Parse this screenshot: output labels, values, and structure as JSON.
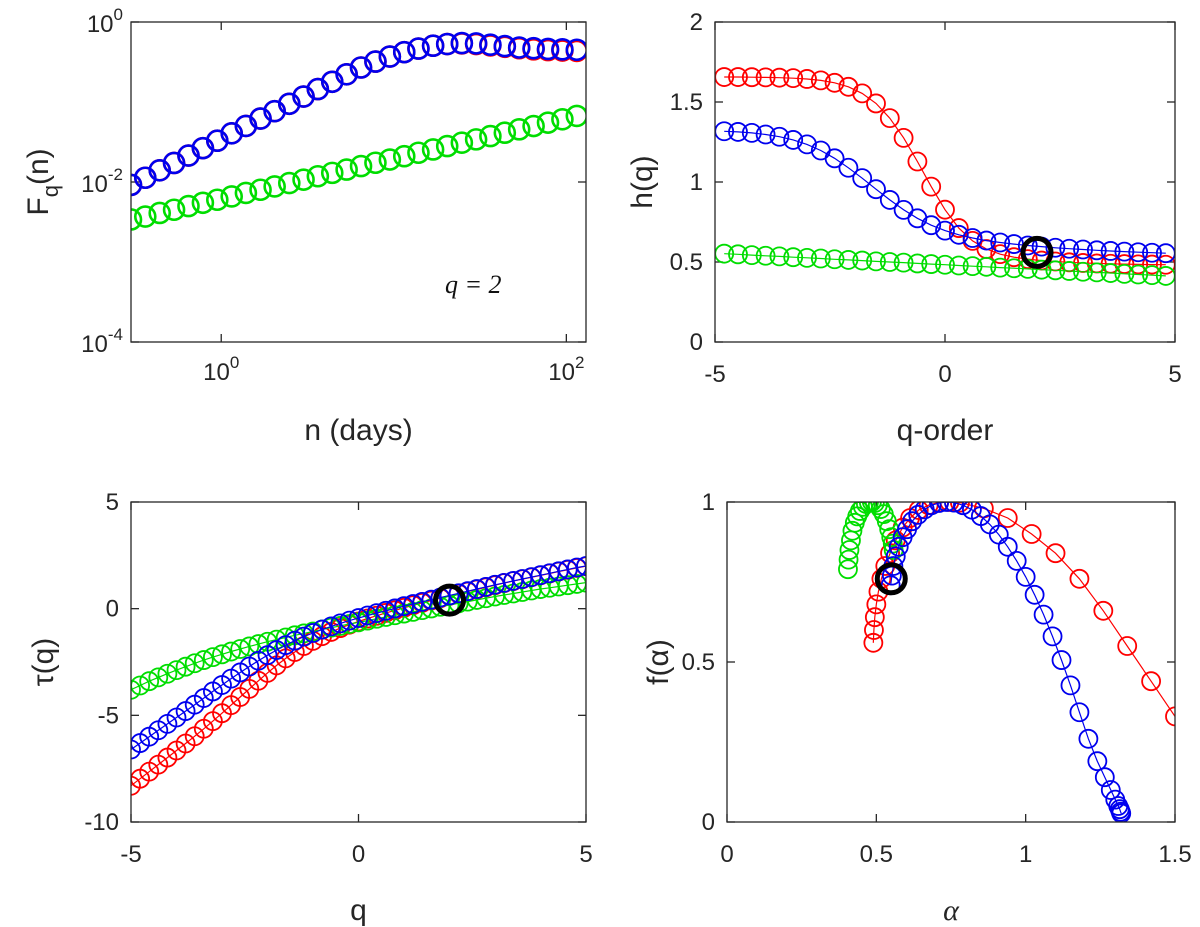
{
  "colors": {
    "red": "#ff0000",
    "green": "#00dd00",
    "blue": "#0000ee",
    "black": "#000000"
  },
  "chart_data": [
    {
      "type": "scatter",
      "panel": "top-left",
      "xscale": "log",
      "yscale": "log",
      "xlim": [
        0.3,
        130
      ],
      "ylim": [
        0.0001,
        1
      ],
      "xticks": [
        1,
        100
      ],
      "xtick_labels": [
        {
          "base": "10",
          "exp": "0"
        },
        {
          "base": "10",
          "exp": "2"
        }
      ],
      "yticks": [
        0.0001,
        0.01,
        1
      ],
      "ytick_labels": [
        {
          "base": "10",
          "exp": "-4"
        },
        {
          "base": "10",
          "exp": "-2"
        },
        {
          "base": "10",
          "exp": "0"
        }
      ],
      "xlabel": "n (days)",
      "ylabel": {
        "main": "F",
        "sub": "q",
        "tail": "(n)"
      },
      "annotation": "q = 2",
      "series": [
        {
          "color": "red",
          "line": false,
          "x": [
            0.3,
            0.363,
            0.44,
            0.533,
            0.646,
            0.783,
            0.949,
            1.15,
            1.39,
            1.69,
            2.04,
            2.48,
            3.0,
            3.63,
            4.4,
            5.33,
            6.46,
            7.83,
            9.49,
            11.5,
            13.9,
            16.9,
            20.4,
            24.8,
            30.0,
            36.3,
            44.0,
            53.3,
            64.6,
            78.3,
            94.9,
            115
          ],
          "y": [
            0.0092,
            0.0113,
            0.014,
            0.0173,
            0.0214,
            0.0265,
            0.0328,
            0.0406,
            0.0502,
            0.0621,
            0.0768,
            0.095,
            0.117,
            0.145,
            0.179,
            0.222,
            0.27,
            0.32,
            0.37,
            0.42,
            0.465,
            0.505,
            0.53,
            0.54,
            0.53,
            0.51,
            0.49,
            0.47,
            0.455,
            0.445,
            0.44,
            0.435
          ]
        },
        {
          "color": "green",
          "line": false,
          "x": [
            0.3,
            0.363,
            0.44,
            0.533,
            0.646,
            0.783,
            0.949,
            1.15,
            1.39,
            1.69,
            2.04,
            2.48,
            3.0,
            3.63,
            4.4,
            5.33,
            6.46,
            7.83,
            9.49,
            11.5,
            13.9,
            16.9,
            20.4,
            24.8,
            30.0,
            36.3,
            44.0,
            53.3,
            64.6,
            78.3,
            94.9,
            115
          ],
          "y": [
            0.0034,
            0.0037,
            0.0041,
            0.0045,
            0.005,
            0.0055,
            0.006,
            0.0066,
            0.0073,
            0.008,
            0.0088,
            0.0097,
            0.0107,
            0.0118,
            0.013,
            0.0143,
            0.0158,
            0.0174,
            0.0191,
            0.021,
            0.0232,
            0.0255,
            0.0281,
            0.031,
            0.0341,
            0.0375,
            0.0413,
            0.0455,
            0.0501,
            0.0552,
            0.0608,
            0.067
          ]
        },
        {
          "color": "blue",
          "line": false,
          "x": [
            0.3,
            0.363,
            0.44,
            0.533,
            0.646,
            0.783,
            0.949,
            1.15,
            1.39,
            1.69,
            2.04,
            2.48,
            3.0,
            3.63,
            4.4,
            5.33,
            6.46,
            7.83,
            9.49,
            11.5,
            13.9,
            16.9,
            20.4,
            24.8,
            30.0,
            36.3,
            44.0,
            53.3,
            64.6,
            78.3,
            94.9,
            115
          ],
          "y": [
            0.0092,
            0.0113,
            0.014,
            0.0173,
            0.0214,
            0.0265,
            0.0328,
            0.0406,
            0.0502,
            0.0621,
            0.0768,
            0.095,
            0.117,
            0.145,
            0.179,
            0.222,
            0.27,
            0.32,
            0.37,
            0.42,
            0.465,
            0.505,
            0.53,
            0.545,
            0.54,
            0.52,
            0.5,
            0.48,
            0.47,
            0.46,
            0.455,
            0.45
          ]
        }
      ]
    },
    {
      "type": "scatter",
      "panel": "top-right",
      "xlim": [
        -5,
        5
      ],
      "ylim": [
        0,
        2
      ],
      "xticks": [
        -5,
        0,
        5
      ],
      "yticks": [
        0,
        0.5,
        1,
        1.5,
        2
      ],
      "xlabel": "q-order",
      "ylabel": "h(q)",
      "series": [
        {
          "color": "red",
          "line": true,
          "x": [
            -4.8,
            -4.5,
            -4.2,
            -3.9,
            -3.6,
            -3.3,
            -3.0,
            -2.7,
            -2.4,
            -2.1,
            -1.8,
            -1.5,
            -1.2,
            -0.9,
            -0.6,
            -0.3,
            0.0,
            0.3,
            0.6,
            0.9,
            1.2,
            1.5,
            1.8,
            2.1,
            2.4,
            2.7,
            3.0,
            3.3,
            3.6,
            3.9,
            4.2,
            4.5,
            4.8
          ],
          "y": [
            1.656,
            1.656,
            1.655,
            1.654,
            1.652,
            1.649,
            1.644,
            1.635,
            1.62,
            1.595,
            1.554,
            1.491,
            1.399,
            1.276,
            1.128,
            0.971,
            0.827,
            0.712,
            0.632,
            0.581,
            0.549,
            0.53,
            0.518,
            0.509,
            0.503,
            0.498,
            0.494,
            0.491,
            0.489,
            0.487,
            0.485,
            0.484,
            0.483
          ]
        },
        {
          "color": "green",
          "line": true,
          "x": [
            -4.8,
            -4.5,
            -4.2,
            -3.9,
            -3.6,
            -3.3,
            -3.0,
            -2.7,
            -2.4,
            -2.1,
            -1.8,
            -1.5,
            -1.2,
            -0.9,
            -0.6,
            -0.3,
            0.0,
            0.3,
            0.6,
            0.9,
            1.2,
            1.5,
            1.8,
            2.1,
            2.4,
            2.7,
            3.0,
            3.3,
            3.6,
            3.9,
            4.2,
            4.5,
            4.8
          ],
          "y": [
            0.552,
            0.548,
            0.543,
            0.539,
            0.535,
            0.53,
            0.526,
            0.522,
            0.517,
            0.513,
            0.509,
            0.504,
            0.5,
            0.496,
            0.491,
            0.487,
            0.483,
            0.478,
            0.474,
            0.47,
            0.465,
            0.461,
            0.457,
            0.452,
            0.448,
            0.444,
            0.439,
            0.435,
            0.431,
            0.426,
            0.422,
            0.418,
            0.413
          ]
        },
        {
          "color": "blue",
          "line": true,
          "x": [
            -4.8,
            -4.5,
            -4.2,
            -3.9,
            -3.6,
            -3.3,
            -3.0,
            -2.7,
            -2.4,
            -2.1,
            -1.8,
            -1.5,
            -1.2,
            -0.9,
            -0.6,
            -0.3,
            0.0,
            0.3,
            0.6,
            0.9,
            1.2,
            1.5,
            1.8,
            2.1,
            2.4,
            2.7,
            3.0,
            3.3,
            3.6,
            3.9,
            4.2,
            4.5,
            4.8
          ],
          "y": [
            1.317,
            1.313,
            1.307,
            1.297,
            1.283,
            1.263,
            1.235,
            1.197,
            1.148,
            1.089,
            1.024,
            0.955,
            0.888,
            0.826,
            0.773,
            0.73,
            0.696,
            0.67,
            0.65,
            0.634,
            0.622,
            0.612,
            0.603,
            0.596,
            0.589,
            0.583,
            0.578,
            0.573,
            0.569,
            0.565,
            0.561,
            0.558,
            0.555
          ]
        }
      ],
      "highlight": {
        "x": 2,
        "y": 0.56
      }
    },
    {
      "type": "scatter",
      "panel": "bottom-left",
      "xlim": [
        -5,
        5
      ],
      "ylim": [
        -10,
        5
      ],
      "xticks": [
        -5,
        0,
        5
      ],
      "yticks": [
        -10,
        -5,
        0,
        5
      ],
      "xlabel": "q",
      "ylabel": "τ(q)",
      "series": [
        {
          "color": "red",
          "line": true,
          "x": [
            -5.0,
            -4.8,
            -4.6,
            -4.4,
            -4.2,
            -4.0,
            -3.8,
            -3.6,
            -3.4,
            -3.2,
            -3.0,
            -2.8,
            -2.6,
            -2.4,
            -2.2,
            -2.0,
            -1.8,
            -1.6,
            -1.4,
            -1.2,
            -1.0,
            -0.8,
            -0.6,
            -0.4,
            -0.2,
            0.0,
            0.2,
            0.4,
            0.6,
            0.8,
            1.0,
            1.2,
            1.4,
            1.6,
            1.8,
            2.0,
            2.2,
            2.4,
            2.6,
            2.8,
            3.0,
            3.2,
            3.4,
            3.6,
            3.8,
            4.0,
            4.2,
            4.4,
            4.6,
            4.8,
            5.0
          ],
          "y": [
            -8.3,
            -7.97,
            -7.64,
            -7.31,
            -6.98,
            -6.65,
            -6.32,
            -5.98,
            -5.63,
            -5.27,
            -4.9,
            -4.52,
            -4.14,
            -3.76,
            -3.38,
            -3.01,
            -2.66,
            -2.33,
            -2.03,
            -1.75,
            -1.51,
            -1.29,
            -1.09,
            -0.91,
            -0.75,
            -0.6,
            -0.46,
            -0.33,
            -0.2,
            -0.08,
            0.04,
            0.16,
            0.27,
            0.38,
            0.49,
            0.6,
            0.7,
            0.8,
            0.9,
            1.0,
            1.1,
            1.2,
            1.29,
            1.38,
            1.47,
            1.56,
            1.65,
            1.74,
            1.82,
            1.91,
            1.99
          ]
        },
        {
          "color": "green",
          "line": true,
          "x": [
            -5.0,
            -4.8,
            -4.6,
            -4.4,
            -4.2,
            -4.0,
            -3.8,
            -3.6,
            -3.4,
            -3.2,
            -3.0,
            -2.8,
            -2.6,
            -2.4,
            -2.2,
            -2.0,
            -1.8,
            -1.6,
            -1.4,
            -1.2,
            -1.0,
            -0.8,
            -0.6,
            -0.4,
            -0.2,
            0.0,
            0.2,
            0.4,
            0.6,
            0.8,
            1.0,
            1.2,
            1.4,
            1.6,
            1.8,
            2.0,
            2.2,
            2.4,
            2.6,
            2.8,
            3.0,
            3.2,
            3.4,
            3.6,
            3.8,
            4.0,
            4.2,
            4.4,
            4.6,
            4.8,
            5.0
          ],
          "y": [
            -3.8,
            -3.6,
            -3.4,
            -3.22,
            -3.05,
            -2.88,
            -2.72,
            -2.56,
            -2.41,
            -2.27,
            -2.14,
            -2.01,
            -1.89,
            -1.77,
            -1.66,
            -1.55,
            -1.45,
            -1.35,
            -1.25,
            -1.16,
            -1.07,
            -0.98,
            -0.89,
            -0.81,
            -0.72,
            -0.64,
            -0.56,
            -0.47,
            -0.39,
            -0.31,
            -0.23,
            -0.15,
            -0.07,
            0.01,
            0.09,
            0.17,
            0.25,
            0.33,
            0.41,
            0.49,
            0.57,
            0.64,
            0.71,
            0.78,
            0.85,
            0.92,
            0.98,
            1.04,
            1.1,
            1.16,
            1.22
          ]
        },
        {
          "color": "blue",
          "line": true,
          "x": [
            -5.0,
            -4.8,
            -4.6,
            -4.4,
            -4.2,
            -4.0,
            -3.8,
            -3.6,
            -3.4,
            -3.2,
            -3.0,
            -2.8,
            -2.6,
            -2.4,
            -2.2,
            -2.0,
            -1.8,
            -1.6,
            -1.4,
            -1.2,
            -1.0,
            -0.8,
            -0.6,
            -0.4,
            -0.2,
            0.0,
            0.2,
            0.4,
            0.6,
            0.8,
            1.0,
            1.2,
            1.4,
            1.6,
            1.8,
            2.0,
            2.2,
            2.4,
            2.6,
            2.8,
            3.0,
            3.2,
            3.4,
            3.6,
            3.8,
            4.0,
            4.2,
            4.4,
            4.6,
            4.8,
            5.0
          ],
          "y": [
            -6.6,
            -6.3,
            -6.0,
            -5.7,
            -5.4,
            -5.1,
            -4.8,
            -4.5,
            -4.19,
            -3.88,
            -3.58,
            -3.28,
            -2.99,
            -2.71,
            -2.44,
            -2.18,
            -1.94,
            -1.71,
            -1.5,
            -1.31,
            -1.14,
            -0.98,
            -0.83,
            -0.69,
            -0.56,
            -0.44,
            -0.32,
            -0.21,
            -0.1,
            0.01,
            0.12,
            0.22,
            0.32,
            0.42,
            0.52,
            0.62,
            0.72,
            0.82,
            0.92,
            1.02,
            1.12,
            1.21,
            1.3,
            1.39,
            1.48,
            1.57,
            1.66,
            1.75,
            1.84,
            1.93,
            2.0
          ]
        }
      ],
      "highlight": {
        "x": 2,
        "y": 0.4
      }
    },
    {
      "type": "scatter",
      "panel": "bottom-right",
      "xlim": [
        0,
        1.5
      ],
      "ylim": [
        0,
        1
      ],
      "xticks": [
        0,
        0.5,
        1,
        1.5
      ],
      "yticks": [
        0,
        0.5,
        1
      ],
      "xlabel": "α",
      "ylabel": "f(α)",
      "series": [
        {
          "color": "red",
          "line": true,
          "x": [
            0.49,
            0.492,
            0.495,
            0.5,
            0.507,
            0.517,
            0.53,
            0.546,
            0.565,
            0.588,
            0.613,
            0.642,
            0.675,
            0.71,
            0.745,
            0.78,
            0.86,
            0.94,
            1.02,
            1.1,
            1.18,
            1.26,
            1.34,
            1.42,
            1.5
          ],
          "y": [
            0.56,
            0.6,
            0.64,
            0.68,
            0.72,
            0.76,
            0.8,
            0.84,
            0.88,
            0.92,
            0.95,
            0.975,
            0.99,
            0.999,
            1.0,
            0.998,
            0.98,
            0.95,
            0.9,
            0.84,
            0.76,
            0.66,
            0.55,
            0.44,
            0.33
          ]
        },
        {
          "color": "green",
          "line": false,
          "x": [
            0.405,
            0.407,
            0.41,
            0.415,
            0.42,
            0.428,
            0.436,
            0.445,
            0.455,
            0.465,
            0.475,
            0.485,
            0.495,
            0.505,
            0.515,
            0.525,
            0.535,
            0.543,
            0.55,
            0.555,
            0.558
          ],
          "y": [
            0.79,
            0.82,
            0.85,
            0.88,
            0.91,
            0.935,
            0.955,
            0.972,
            0.985,
            0.994,
            0.999,
            1.0,
            0.997,
            0.99,
            0.978,
            0.962,
            0.94,
            0.915,
            0.89,
            0.87,
            0.85
          ]
        },
        {
          "color": "blue",
          "line": true,
          "x": [
            0.548,
            0.552,
            0.557,
            0.565,
            0.575,
            0.588,
            0.603,
            0.62,
            0.64,
            0.662,
            0.685,
            0.71,
            0.735,
            0.76,
            0.79,
            0.82,
            0.85,
            0.88,
            0.91,
            0.94,
            0.97,
            1.0,
            1.03,
            1.06,
            1.09,
            1.12,
            1.15,
            1.18,
            1.21,
            1.24,
            1.265,
            1.285,
            1.3,
            1.31,
            1.315,
            1.318,
            1.32
          ],
          "y": [
            0.74,
            0.77,
            0.8,
            0.83,
            0.86,
            0.89,
            0.915,
            0.94,
            0.96,
            0.977,
            0.99,
            0.997,
            1.0,
            0.998,
            0.99,
            0.976,
            0.956,
            0.93,
            0.898,
            0.86,
            0.816,
            0.766,
            0.71,
            0.648,
            0.58,
            0.506,
            0.427,
            0.343,
            0.26,
            0.19,
            0.14,
            0.1,
            0.07,
            0.05,
            0.04,
            0.032,
            0.027
          ]
        }
      ],
      "highlight": {
        "x": 0.55,
        "y": 0.76
      }
    }
  ]
}
